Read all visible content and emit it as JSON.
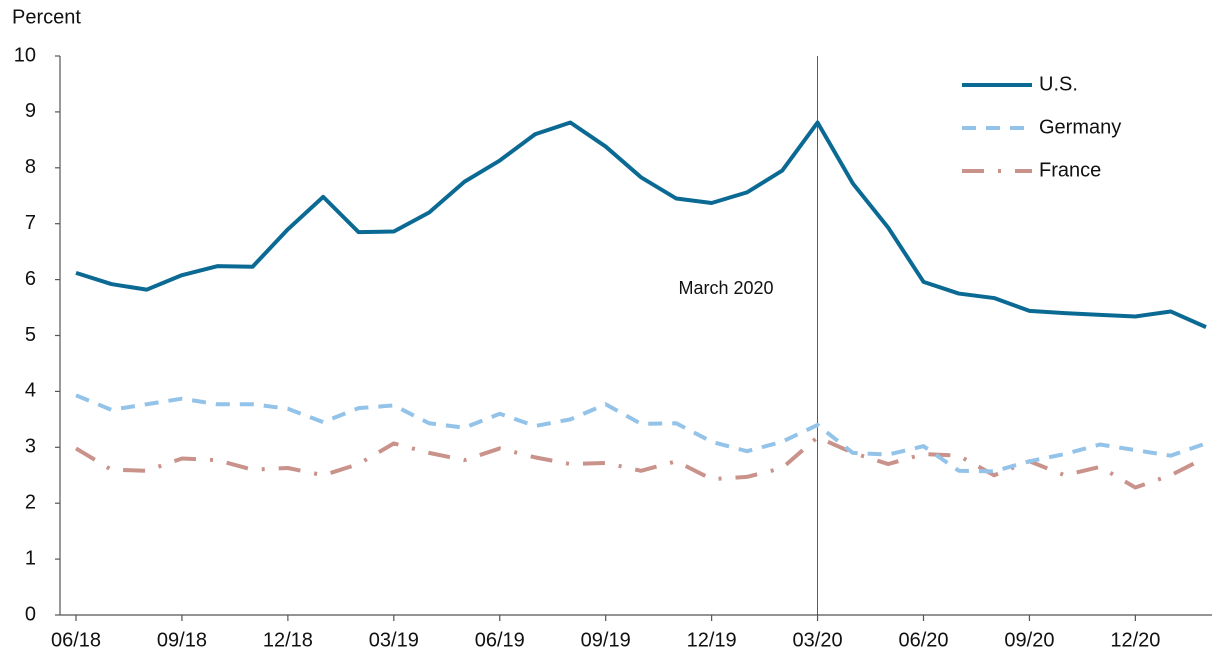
{
  "chart_data": {
    "type": "line",
    "y_label": "Percent",
    "categories": [
      "06/18",
      null,
      null,
      "09/18",
      null,
      null,
      "12/18",
      null,
      null,
      "03/19",
      null,
      null,
      "06/19",
      null,
      null,
      "09/19",
      null,
      null,
      "12/19",
      null,
      null,
      "03/20",
      null,
      null,
      "06/20",
      null,
      null,
      "09/20",
      null,
      null,
      "12/20",
      null,
      null
    ],
    "series": [
      {
        "name": "U.S.",
        "color": "#0b6a94",
        "style": "solid",
        "values": [
          6.12,
          5.92,
          5.82,
          6.08,
          6.24,
          6.23,
          6.9,
          7.48,
          6.85,
          6.86,
          7.2,
          7.75,
          8.13,
          8.6,
          8.81,
          8.38,
          7.83,
          7.45,
          7.37,
          7.56,
          7.95,
          8.81,
          7.72,
          6.93,
          5.96,
          5.75,
          5.67,
          5.44,
          5.4,
          5.37,
          5.34,
          5.43,
          5.15
        ]
      },
      {
        "name": "Germany",
        "color": "#93c3e8",
        "style": "dashed",
        "values": [
          3.93,
          3.67,
          3.77,
          3.87,
          3.77,
          3.77,
          3.69,
          3.45,
          3.7,
          3.75,
          3.43,
          3.35,
          3.6,
          3.38,
          3.5,
          3.77,
          3.42,
          3.43,
          3.1,
          2.93,
          3.1,
          3.4,
          2.9,
          2.87,
          3.02,
          2.58,
          2.57,
          2.75,
          2.88,
          3.05,
          2.95,
          2.85,
          3.07
        ]
      },
      {
        "name": "France",
        "color": "#c9928a",
        "style": "dashdot",
        "values": [
          2.98,
          2.6,
          2.58,
          2.8,
          2.77,
          2.6,
          2.63,
          2.5,
          2.7,
          3.07,
          2.9,
          2.77,
          2.98,
          2.82,
          2.7,
          2.72,
          2.58,
          2.75,
          2.43,
          2.47,
          2.63,
          3.18,
          2.9,
          2.7,
          2.88,
          2.85,
          2.5,
          2.75,
          2.5,
          2.65,
          2.28,
          2.5,
          2.82
        ]
      }
    ],
    "annotations": [
      {
        "text": "March 2020",
        "at": "03/20"
      }
    ],
    "ylim": [
      0,
      10
    ],
    "yticks": [
      0,
      1,
      2,
      3,
      4,
      5,
      6,
      7,
      8,
      9,
      10
    ],
    "grid": false,
    "legend": "upper right"
  }
}
